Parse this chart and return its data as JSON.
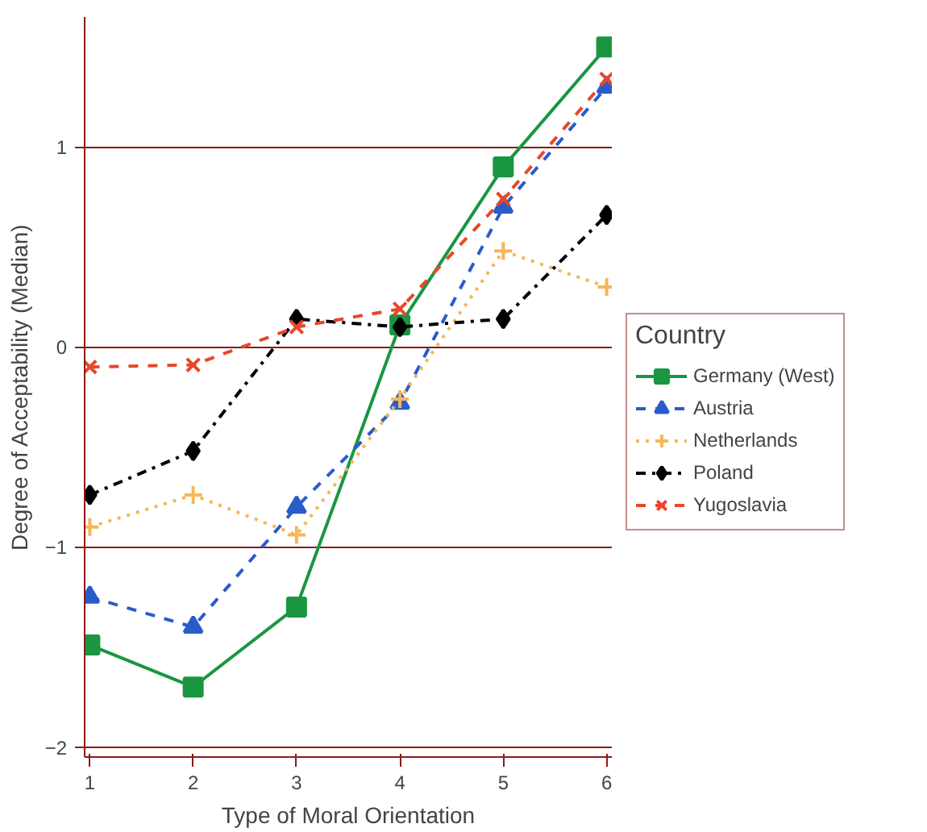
{
  "chart_data": {
    "type": "line",
    "xlabel": "Type of Moral Orientation",
    "ylabel": "Degree of Acceptability (Median)",
    "legend_title": "Country",
    "x": [
      1,
      2,
      3,
      4,
      5,
      6
    ],
    "xlim": [
      0.95,
      6.05
    ],
    "xticks": [
      1,
      2,
      3,
      4,
      5,
      6
    ],
    "ylim": [
      -2.05,
      1.65
    ],
    "yticks": [
      -2,
      -1,
      0,
      1
    ],
    "grid": "y",
    "legend": "right",
    "series": [
      {
        "name": "Germany (West)",
        "color": "#1a9641",
        "marker": "square",
        "line_style": "solid",
        "values": [
          -1.49,
          -1.7,
          -1.3,
          0.11,
          0.9,
          1.5
        ]
      },
      {
        "name": "Austria",
        "color": "#2a5cc9",
        "marker": "triangle",
        "line_style": "dashed",
        "values": [
          -1.25,
          -1.4,
          -0.8,
          -0.28,
          0.7,
          1.3
        ]
      },
      {
        "name": "Netherlands",
        "color": "#f5b75a",
        "marker": "plus",
        "line_style": "dotted",
        "values": [
          -0.9,
          -0.74,
          -0.94,
          -0.26,
          0.48,
          0.3
        ]
      },
      {
        "name": "Poland",
        "color": "#000000",
        "marker": "diamond",
        "line_style": "dashdot",
        "values": [
          -0.74,
          -0.52,
          0.14,
          0.1,
          0.14,
          0.66
        ]
      },
      {
        "name": "Yugoslavia",
        "color": "#e8472a",
        "marker": "x",
        "line_style": "dashed",
        "values": [
          -0.1,
          -0.09,
          0.1,
          0.19,
          0.74,
          1.34
        ]
      }
    ]
  }
}
